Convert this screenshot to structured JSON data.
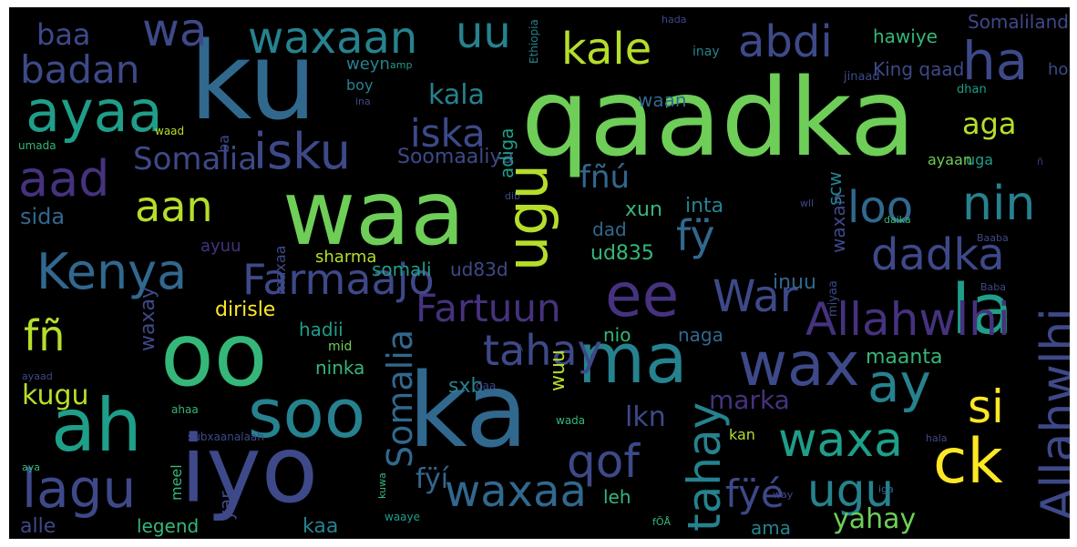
{
  "word_cloud": {
    "palette": {
      "background": "#000000",
      "dark_purple": "#46327e",
      "purple": "#3e4989",
      "blue": "#31688e",
      "teal": "#26828e",
      "teal_green": "#1f9e89",
      "green": "#35b779",
      "light_green": "#6ece58",
      "lime": "#b5de2b",
      "yellow": "#fde725"
    },
    "words": [
      "ku",
      "qaadka",
      "waa",
      "ka",
      "iyo",
      "oo",
      "ah",
      "soo",
      "ma",
      "ee",
      "wax",
      "la",
      "ayaa",
      "Kenya",
      "aad",
      "isku",
      "lagu",
      "waxaa",
      "uu",
      "wa",
      "waxaan",
      "kale",
      "abdi",
      "ha",
      "badan",
      "nin",
      "dadka",
      "ay",
      "waxa",
      "ck",
      "si",
      "ugu",
      "Allahwlhi",
      "tahay",
      "qof",
      "War",
      "aan",
      "loo",
      "fñ",
      "fÿé",
      "fÿí",
      "fñú",
      "fÿ",
      "Fartuun",
      "Farmaajo",
      "iska",
      "kala",
      "aga",
      "Somalia",
      "baa",
      "sida",
      "kugu",
      "marka",
      "lkn",
      "yahay",
      "alle",
      "legend",
      "kaa",
      "dirisle",
      "inuu",
      "maanta",
      "waan",
      "hawiye",
      "Somaliland",
      "King qaad",
      "Soomaaliya",
      "adiga",
      "waxay",
      "yar",
      "ud835",
      "somali",
      "ud83d",
      "sharma",
      "xun",
      "inta",
      "dad",
      "ama",
      "leh",
      "wuu",
      "sxb",
      "nio",
      "naga",
      "waxan",
      "scw",
      "hadii",
      "ninka",
      "mid",
      "maxaa",
      "ayuu",
      "uga",
      "dhan",
      "jinaad",
      "inay",
      "hada",
      "Ethiopia",
      "weyn",
      "boy",
      "amp",
      "ina",
      "ba",
      "waad",
      "umada",
      "dib",
      "daika",
      "Baaba",
      "Baba",
      "wll",
      "wuxuu",
      "meel",
      "aya",
      "hala",
      "kan",
      "kuwa",
      "waaye",
      "fÕÅ",
      "iga",
      "way",
      "wada",
      "ahaa",
      "daa",
      "ayaad",
      "miyaa",
      "hore",
      "ayaan",
      "subxaanalaah",
      "Â",
      "ñ",
      "o",
      "Qumm",
      "yaa"
    ]
  }
}
